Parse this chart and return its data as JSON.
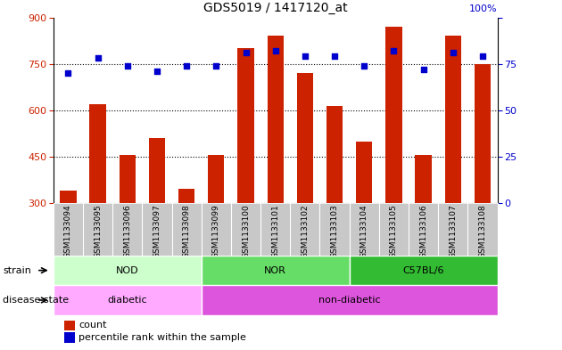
{
  "title": "GDS5019 / 1417120_at",
  "samples": [
    "GSM1133094",
    "GSM1133095",
    "GSM1133096",
    "GSM1133097",
    "GSM1133098",
    "GSM1133099",
    "GSM1133100",
    "GSM1133101",
    "GSM1133102",
    "GSM1133103",
    "GSM1133104",
    "GSM1133105",
    "GSM1133106",
    "GSM1133107",
    "GSM1133108"
  ],
  "counts": [
    340,
    620,
    455,
    510,
    345,
    455,
    800,
    840,
    720,
    615,
    500,
    870,
    455,
    840,
    750
  ],
  "percentiles": [
    70,
    78,
    74,
    71,
    74,
    74,
    81,
    82,
    79,
    79,
    74,
    82,
    72,
    81,
    79
  ],
  "strain_groups": [
    {
      "label": "NOD",
      "start": 0,
      "end": 4,
      "color": "#ccffcc"
    },
    {
      "label": "NOR",
      "start": 5,
      "end": 9,
      "color": "#66dd66"
    },
    {
      "label": "C57BL/6",
      "start": 10,
      "end": 14,
      "color": "#33bb33"
    }
  ],
  "disease_groups": [
    {
      "label": "diabetic",
      "start": 0,
      "end": 4,
      "color": "#ffaaff"
    },
    {
      "label": "non-diabetic",
      "start": 5,
      "end": 14,
      "color": "#dd55dd"
    }
  ],
  "ylim_left": [
    300,
    900
  ],
  "ylim_right": [
    0,
    100
  ],
  "yticks_left": [
    300,
    450,
    600,
    750,
    900
  ],
  "yticks_right": [
    0,
    25,
    50,
    75,
    100
  ],
  "bar_color": "#cc2200",
  "dot_color": "#0000cc",
  "bg_color": "#ffffff",
  "tick_area_color": "#c8c8c8"
}
